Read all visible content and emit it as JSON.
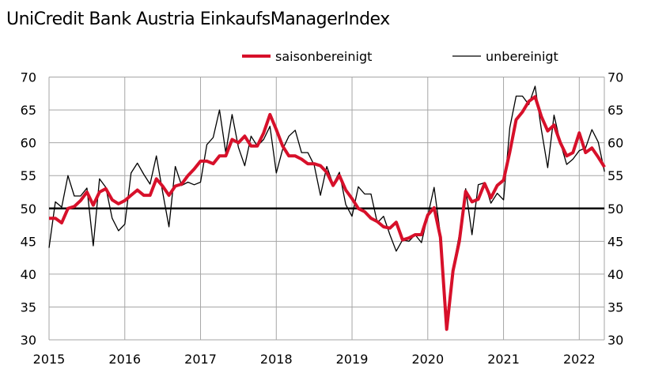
{
  "chart_data": {
    "type": "line",
    "title": "UniCredit Bank Austria EinkaufsManagerIndex",
    "x_start": "2015-01",
    "x_end": "2022-05",
    "frequency": "monthly",
    "x_tick_labels": [
      "2015",
      "2016",
      "2017",
      "2018",
      "2019",
      "2020",
      "2021",
      "2022"
    ],
    "ylim": [
      30,
      70
    ],
    "y_ticks": [
      30,
      35,
      40,
      45,
      50,
      55,
      60,
      65,
      70
    ],
    "y_axis_both_sides": true,
    "grid": true,
    "reference_line": 50,
    "legend_placement": "top",
    "series": [
      {
        "name": "saisonbereinigt",
        "color": "#d7102a",
        "values": [
          48.5,
          48.5,
          47.8,
          50,
          50.3,
          51.2,
          52.5,
          50.5,
          52.5,
          53,
          51.3,
          50.7,
          51.2,
          52,
          52.8,
          52,
          52,
          54.5,
          53.4,
          52,
          53.4,
          53.7,
          55,
          56,
          57.2,
          57.2,
          56.8,
          58,
          58,
          60.5,
          60,
          61,
          59.5,
          59.5,
          61.5,
          64.3,
          62,
          59.5,
          58,
          58,
          57.5,
          56.8,
          56.8,
          56.5,
          55.5,
          53.5,
          55,
          52.8,
          51.5,
          50,
          49.5,
          48.5,
          48,
          47.2,
          47,
          47.9,
          45.2,
          45.5,
          46,
          46,
          49,
          50.1,
          45.6,
          31.6,
          40.5,
          45,
          52.6,
          51,
          51.4,
          53.8,
          51.6,
          53.5,
          54.3,
          58.6,
          63.5,
          64.7,
          66.3,
          67,
          64,
          61.8,
          62.7,
          60,
          58,
          58.5,
          61.5,
          58.5,
          59.2,
          57.8,
          56.3
        ]
      },
      {
        "name": "unbereinigt",
        "color": "#000000",
        "values": [
          44,
          51,
          50.2,
          55,
          51.9,
          51.9,
          53.1,
          44.3,
          54.5,
          53.2,
          48.5,
          46.6,
          47.6,
          55.4,
          56.9,
          55.2,
          53.7,
          58,
          52.5,
          47.2,
          56.4,
          53.5,
          54,
          53.6,
          54,
          59.7,
          60.8,
          65,
          58.5,
          64.3,
          59.3,
          56.5,
          61,
          59.5,
          60.5,
          62.5,
          55.4,
          59,
          61,
          61.9,
          58.5,
          58.5,
          56.6,
          52,
          56.4,
          53.7,
          55.5,
          50.6,
          48.8,
          53.3,
          52.2,
          52.2,
          47.8,
          48.8,
          46,
          43.5,
          45.2,
          45,
          46,
          44.8,
          48.9,
          53.2,
          46,
          33,
          41,
          46,
          53,
          46,
          53.6,
          53.9,
          50.8,
          52.3,
          51.3,
          62.3,
          67.1,
          67.1,
          65.8,
          68.6,
          62,
          56.2,
          64.2,
          60,
          56.7,
          57.5,
          58.8,
          59.2,
          62,
          60.1,
          55.6
        ]
      }
    ]
  }
}
